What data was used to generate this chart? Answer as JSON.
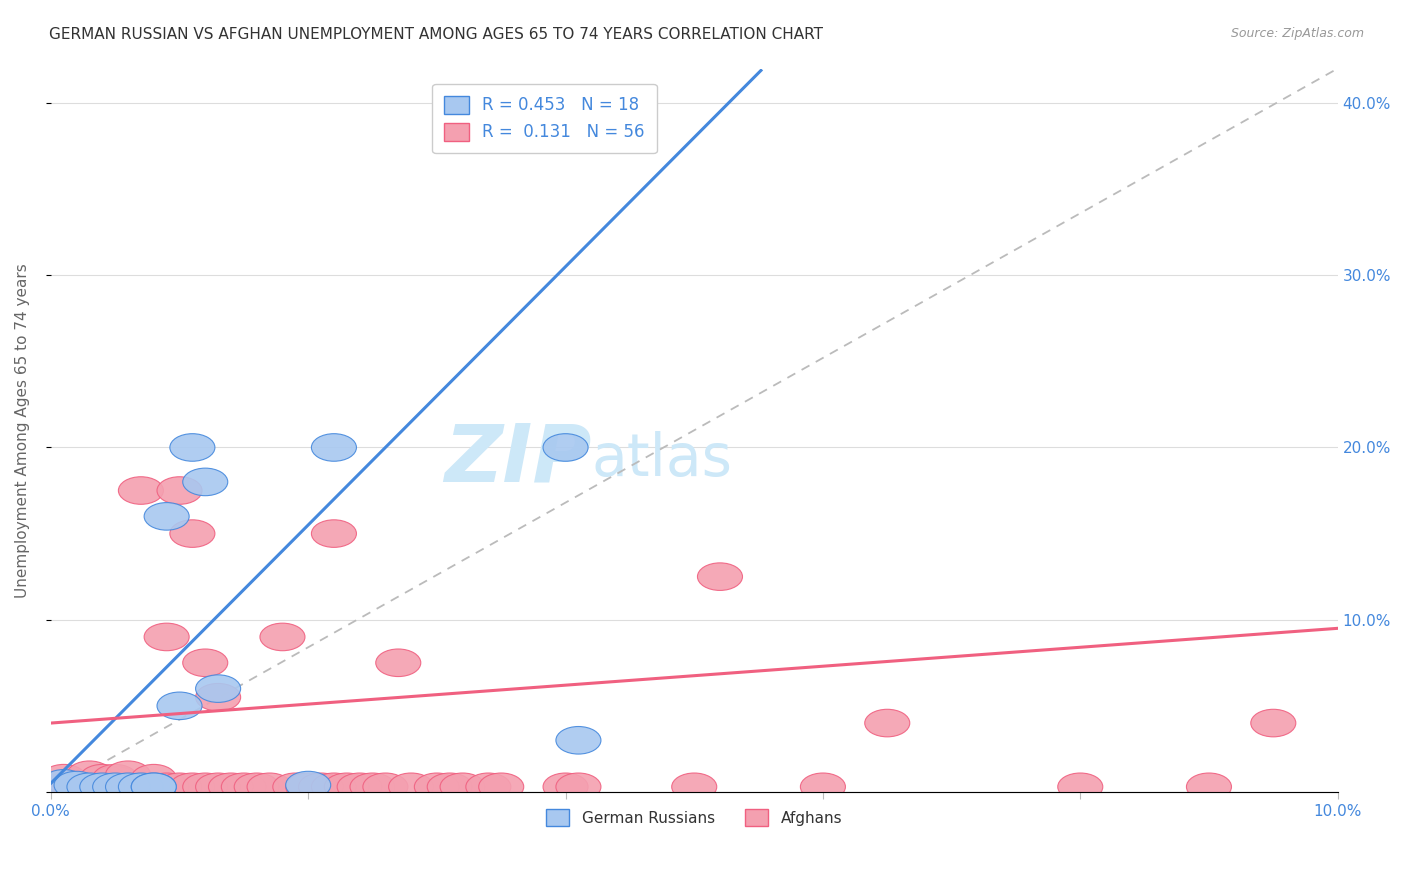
{
  "title": "GERMAN RUSSIAN VS AFGHAN UNEMPLOYMENT AMONG AGES 65 TO 74 YEARS CORRELATION CHART",
  "source": "Source: ZipAtlas.com",
  "ylabel": "Unemployment Among Ages 65 to 74 years",
  "xlabel": "",
  "xlim": [
    0.0,
    0.1
  ],
  "ylim": [
    0.0,
    0.42
  ],
  "yticks": [
    0.0,
    0.1,
    0.2,
    0.3,
    0.4
  ],
  "ytick_labels": [
    "",
    "10.0%",
    "20.0%",
    "30.0%",
    "40.0%"
  ],
  "xticks": [
    0.0,
    0.02,
    0.04,
    0.06,
    0.08,
    0.1
  ],
  "xtick_labels": [
    "0.0%",
    "",
    "",
    "",
    "",
    "10.0%"
  ],
  "german_russian_color": "#a8c8f0",
  "afghan_color": "#f4a0b0",
  "trend_german_color": "#4488dd",
  "trend_afghan_color": "#f06080",
  "diagonal_color": "#bbbbbb",
  "R_german": 0.453,
  "N_german": 18,
  "R_afghan": 0.131,
  "N_afghan": 56,
  "german_x": [
    0.001,
    0.002,
    0.003,
    0.004,
    0.005,
    0.006,
    0.007,
    0.008,
    0.008,
    0.009,
    0.01,
    0.011,
    0.012,
    0.013,
    0.02,
    0.022,
    0.04,
    0.041
  ],
  "german_y": [
    0.005,
    0.004,
    0.003,
    0.003,
    0.003,
    0.003,
    0.003,
    0.003,
    0.003,
    0.16,
    0.05,
    0.2,
    0.18,
    0.06,
    0.004,
    0.2,
    0.2,
    0.03
  ],
  "afghan_x": [
    0.001,
    0.001,
    0.002,
    0.003,
    0.003,
    0.004,
    0.004,
    0.005,
    0.005,
    0.005,
    0.006,
    0.006,
    0.007,
    0.007,
    0.008,
    0.008,
    0.009,
    0.009,
    0.01,
    0.01,
    0.011,
    0.011,
    0.012,
    0.012,
    0.013,
    0.013,
    0.014,
    0.015,
    0.016,
    0.017,
    0.018,
    0.019,
    0.02,
    0.021,
    0.022,
    0.022,
    0.023,
    0.024,
    0.025,
    0.026,
    0.027,
    0.028,
    0.03,
    0.031,
    0.032,
    0.034,
    0.035,
    0.04,
    0.041,
    0.05,
    0.052,
    0.06,
    0.065,
    0.08,
    0.09,
    0.095
  ],
  "afghan_y": [
    0.003,
    0.008,
    0.003,
    0.003,
    0.01,
    0.003,
    0.008,
    0.003,
    0.007,
    0.008,
    0.003,
    0.01,
    0.003,
    0.175,
    0.003,
    0.008,
    0.003,
    0.09,
    0.003,
    0.175,
    0.003,
    0.15,
    0.003,
    0.075,
    0.003,
    0.055,
    0.003,
    0.003,
    0.003,
    0.003,
    0.09,
    0.003,
    0.003,
    0.003,
    0.003,
    0.15,
    0.003,
    0.003,
    0.003,
    0.003,
    0.075,
    0.003,
    0.003,
    0.003,
    0.003,
    0.003,
    0.003,
    0.003,
    0.003,
    0.003,
    0.125,
    0.003,
    0.04,
    0.003,
    0.003,
    0.04
  ],
  "watermark_zip": "ZIP",
  "watermark_atlas": "atlas",
  "background_color": "#ffffff",
  "grid_color": "#dddddd",
  "title_color": "#333333",
  "axis_label_color": "#4488dd",
  "legend_color": "#4488dd"
}
